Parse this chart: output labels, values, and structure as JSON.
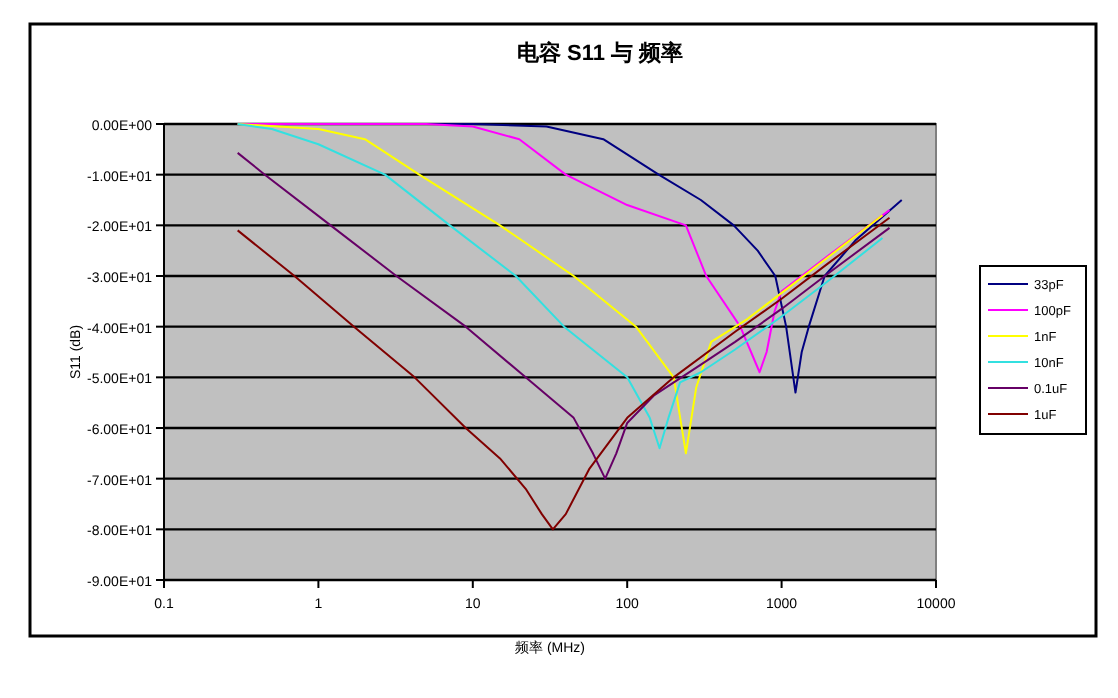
{
  "chart_data": {
    "type": "line",
    "title": "电容 S11 与 频率",
    "xlabel": "频率 (MHz)",
    "ylabel": "S11 (dB)",
    "log": "x",
    "grid": "y",
    "legend": "right",
    "marker": "none",
    "line_style": "solid",
    "xlim": [
      0.1,
      10000
    ],
    "xticks": [
      0.1,
      1,
      10,
      100,
      1000,
      10000
    ],
    "ylim": [
      -90,
      0
    ],
    "yticks": [
      {
        "value": 0,
        "label": "0.00E+00"
      },
      {
        "value": -10,
        "label": "-1.00E+01"
      },
      {
        "value": -20,
        "label": "-2.00E+01"
      },
      {
        "value": -30,
        "label": "-3.00E+01"
      },
      {
        "value": -40,
        "label": "-4.00E+01"
      },
      {
        "value": -50,
        "label": "-5.00E+01"
      },
      {
        "value": -60,
        "label": "-6.00E+01"
      },
      {
        "value": -70,
        "label": "-7.00E+01"
      },
      {
        "value": -80,
        "label": "-8.00E+01"
      },
      {
        "value": -90,
        "label": "-9.00E+01"
      }
    ],
    "series": [
      {
        "name": "33pF",
        "color": "#000080",
        "x": [
          3,
          10,
          30,
          70,
          160,
          300,
          490,
          700,
          910,
          1070,
          1230,
          1350,
          1500,
          1900,
          3000,
          6000
        ],
        "values": [
          0,
          0,
          -0.5,
          -3,
          -10,
          -15,
          -20,
          -25,
          -30,
          -40,
          -53,
          -45,
          -40,
          -30,
          -23,
          -15
        ]
      },
      {
        "name": "100pF",
        "color": "#ff00ff",
        "x": [
          0.3,
          1,
          5,
          10,
          20,
          40,
          100,
          240,
          325,
          540,
          720,
          800,
          900,
          1000,
          2000,
          5000
        ],
        "values": [
          0,
          0,
          0,
          -0.5,
          -3,
          -10,
          -16,
          -20,
          -30,
          -40,
          -49,
          -45,
          -37,
          -33,
          -26,
          -17
        ]
      },
      {
        "name": "1nF",
        "color": "#ffff00",
        "x": [
          0.3,
          1,
          2,
          4.5,
          15,
          45,
          114,
          200,
          240,
          280,
          350,
          600,
          1200,
          2500,
          4500
        ],
        "values": [
          0,
          -1,
          -3,
          -10,
          -20,
          -30,
          -40,
          -50,
          -65,
          -52,
          -43,
          -38.5,
          -31.5,
          -24,
          -18
        ]
      },
      {
        "name": "10nF",
        "color": "#33e0e0",
        "x": [
          0.3,
          0.5,
          1,
          2.7,
          7.1,
          19,
          39,
          100,
          140,
          162,
          185,
          220,
          300,
          500,
          1000,
          2000,
          4500
        ],
        "values": [
          0,
          -1,
          -4,
          -10,
          -20,
          -30,
          -40,
          -50,
          -58,
          -64,
          -58,
          -51,
          -49,
          -44.5,
          -38,
          -31,
          -22.5
        ]
      },
      {
        "name": "0.1uF",
        "color": "#660066",
        "x": [
          0.3,
          0.45,
          1.2,
          3.2,
          9,
          22,
          45,
          60,
          72,
          85,
          100,
          150,
          300,
          500,
          1000,
          2000,
          5000
        ],
        "values": [
          -5.7,
          -10,
          -20,
          -30,
          -40,
          -50,
          -58,
          -65,
          -70,
          -65,
          -59,
          -53.5,
          -47.5,
          -43,
          -36.5,
          -29.5,
          -20.5
        ]
      },
      {
        "name": "1uF",
        "color": "#800000",
        "x": [
          0.3,
          0.7,
          1.7,
          4.2,
          9,
          15,
          22,
          28,
          33,
          40,
          57,
          100,
          200,
          500,
          1000,
          2000,
          5000
        ],
        "values": [
          -21,
          -30,
          -40,
          -50,
          -60,
          -66,
          -72,
          -77,
          -80,
          -77,
          -68,
          -58,
          -50,
          -41,
          -34.5,
          -27.5,
          -18.5
        ]
      }
    ]
  }
}
